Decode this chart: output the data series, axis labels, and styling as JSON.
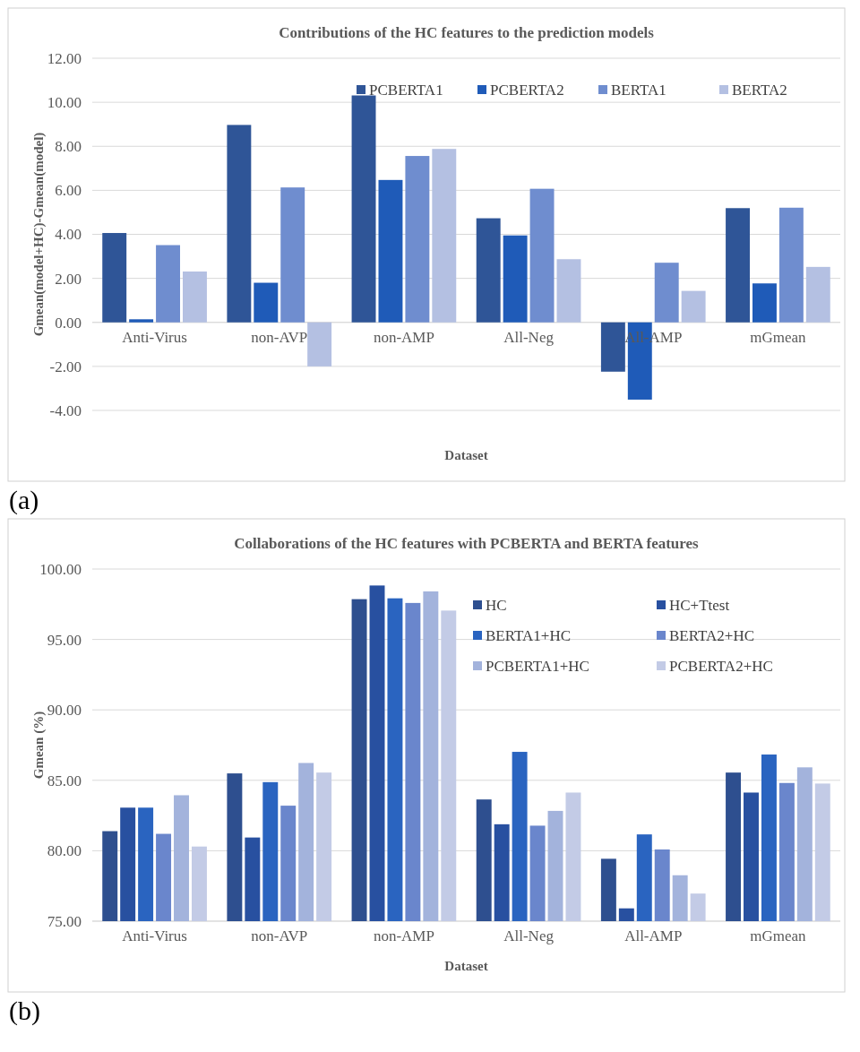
{
  "chart_data": [
    {
      "type": "bar",
      "title": "Contributions of the HC features to the prediction models",
      "xlabel": "Dataset",
      "ylabel": "Gmean(model+HC)-Gmean(model)",
      "categories": [
        "Anti-Virus",
        "non-AVP",
        "non-AMP",
        "All-Neg",
        "All-AMP",
        "mGmean"
      ],
      "series": [
        {
          "name": "PCBERTA1",
          "color": "#2f5597",
          "values": [
            4.06,
            8.97,
            10.31,
            4.73,
            -2.24,
            5.19
          ]
        },
        {
          "name": "PCBERTA2",
          "color": "#1f5bb8",
          "values": [
            0.14,
            1.8,
            6.47,
            3.95,
            -3.51,
            1.77
          ]
        },
        {
          "name": "BERTA1",
          "color": "#6f8dcf",
          "values": [
            3.51,
            6.13,
            7.56,
            6.07,
            2.71,
            5.21
          ]
        },
        {
          "name": "BERTA2",
          "color": "#b4c0e2",
          "values": [
            2.31,
            -2.0,
            7.88,
            2.87,
            1.43,
            2.52
          ]
        }
      ],
      "ylim": [
        -4,
        12
      ],
      "yticks": [
        {
          "value": -4,
          "label": "-4.00"
        },
        {
          "value": -2,
          "label": "-2.00"
        },
        {
          "value": 0,
          "label": "0.00"
        },
        {
          "value": 2,
          "label": "2.00"
        },
        {
          "value": 4,
          "label": "4.00"
        },
        {
          "value": 6,
          "label": "6.00"
        },
        {
          "value": 8,
          "label": "8.00"
        },
        {
          "value": 10,
          "label": "10.00"
        },
        {
          "value": 12,
          "label": "12.00"
        }
      ],
      "grid": "y",
      "legend": "top right",
      "annotations": [
        "(a)"
      ]
    },
    {
      "type": "bar",
      "title": "Collaborations of the HC features with PCBERTA and BERTA features",
      "xlabel": "Dataset",
      "ylabel": "Gmean (%)",
      "categories": [
        "Anti-Virus",
        "non-AVP",
        "non-AMP",
        "All-Neg",
        "All-AMP",
        "mGmean"
      ],
      "series": [
        {
          "name": "HC",
          "color": "#2e4f8f",
          "values": [
            81.39,
            85.49,
            97.86,
            83.64,
            79.43,
            85.55
          ]
        },
        {
          "name": "HC+Ttest",
          "color": "#2850a0",
          "values": [
            83.06,
            80.94,
            98.83,
            81.88,
            75.91,
            84.13
          ]
        },
        {
          "name": "BERTA1+HC",
          "color": "#2a64c0",
          "values": [
            83.06,
            84.87,
            97.92,
            87.02,
            81.16,
            86.83
          ]
        },
        {
          "name": "BERTA2+HC",
          "color": "#6a86cc",
          "values": [
            81.2,
            83.2,
            97.59,
            81.78,
            80.09,
            84.81
          ]
        },
        {
          "name": "PCBERTA1+HC",
          "color": "#a3b3dc",
          "values": [
            83.94,
            86.23,
            98.41,
            82.83,
            78.26,
            85.92
          ]
        },
        {
          "name": "PCBERTA2+HC",
          "color": "#c3cbe6",
          "values": [
            80.3,
            85.55,
            97.05,
            84.13,
            76.96,
            84.77
          ]
        }
      ],
      "ylim": [
        75,
        100
      ],
      "yticks": [
        {
          "value": 75,
          "label": "75.00"
        },
        {
          "value": 80,
          "label": "80.00"
        },
        {
          "value": 85,
          "label": "85.00"
        },
        {
          "value": 90,
          "label": "90.00"
        },
        {
          "value": 95,
          "label": "95.00"
        },
        {
          "value": 100,
          "label": "100.00"
        }
      ],
      "grid": "y",
      "legend": "top right",
      "annotations": [
        "(b)"
      ]
    }
  ]
}
